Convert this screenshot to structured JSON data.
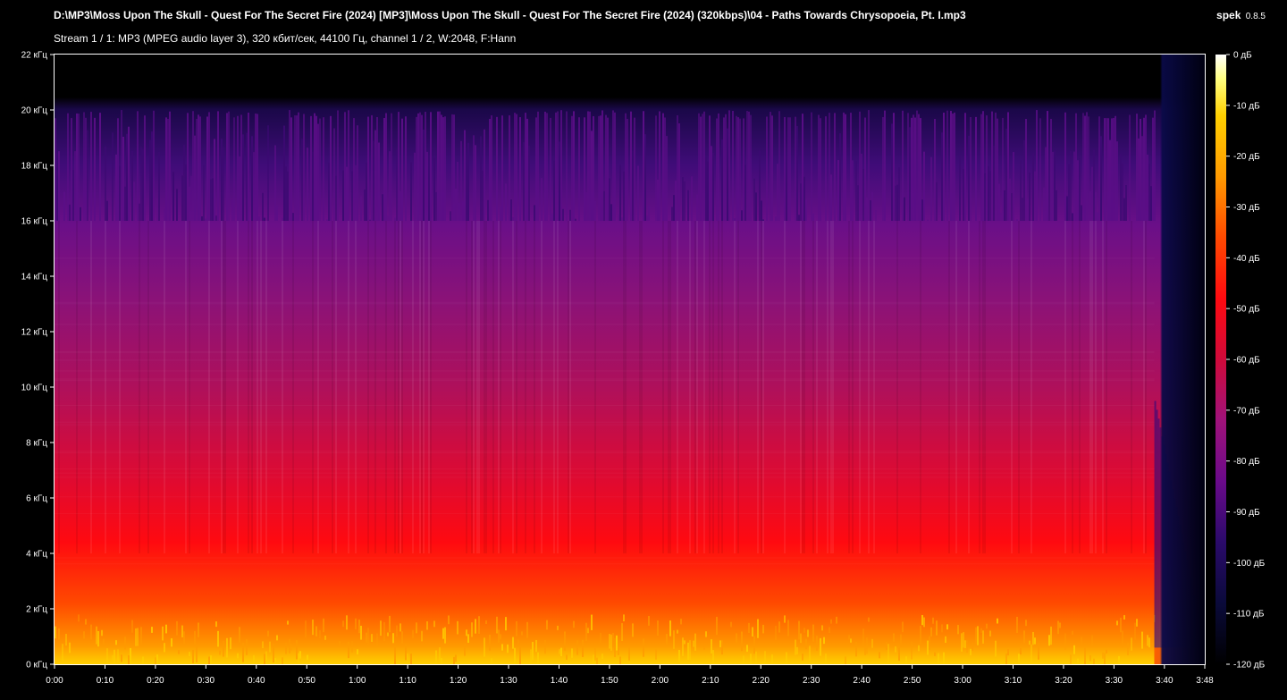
{
  "header": {
    "file_path": "D:\\MP3\\Moss Upon The Skull - Quest For The Secret Fire (2024) [MP3]\\Moss Upon The Skull - Quest For The Secret Fire (2024) (320kbps)\\04 - Paths Towards Chrysopoeia, Pt. I.mp3",
    "stream_info": "Stream 1 / 1: MP3 (MPEG audio layer 3), 320 кбит/сек, 44100 Гц, channel 1 / 2, W:2048, F:Hann",
    "app_name": "spek",
    "app_version": "0.8.5"
  },
  "chart_data": {
    "type": "heatmap",
    "title": "",
    "xlabel": "",
    "ylabel": "",
    "x_unit": "time (m:ss)",
    "x_range_seconds": [
      0,
      228
    ],
    "x_ticks": [
      "0:00",
      "0:10",
      "0:20",
      "0:30",
      "0:40",
      "0:50",
      "1:00",
      "1:10",
      "1:20",
      "1:30",
      "1:40",
      "1:50",
      "2:00",
      "2:10",
      "2:20",
      "2:30",
      "2:40",
      "2:50",
      "3:00",
      "3:10",
      "3:20",
      "3:30",
      "3:40",
      "3:48"
    ],
    "y_range_khz": [
      0,
      22
    ],
    "y_ticks": [
      "0 кГц",
      "2 кГц",
      "4 кГц",
      "6 кГц",
      "8 кГц",
      "10 кГц",
      "12 кГц",
      "14 кГц",
      "16 кГц",
      "18 кГц",
      "20 кГц",
      "22 кГц"
    ],
    "colorbar_range_db": [
      -120,
      0
    ],
    "colorbar_ticks": [
      "0 дБ",
      "-10 дБ",
      "-20 дБ",
      "-30 дБ",
      "-40 дБ",
      "-50 дБ",
      "-60 дБ",
      "-70 дБ",
      "-80 дБ",
      "-90 дБ",
      "-100 дБ",
      "-110 дБ",
      "-120 дБ"
    ],
    "palette": [
      "#000000",
      "#0a0a3a",
      "#2a0a6a",
      "#6a0a8a",
      "#a0127a",
      "#d00a3a",
      "#ff0a10",
      "#ff4a00",
      "#ff9a00",
      "#ffd000",
      "#ffff80",
      "#ffffff"
    ],
    "lowpass_cutoff_khz": 20,
    "frequent_cutoff_khz": 16,
    "notes_visible": "energy concentrated below ~5 kHz (red/orange), content extends to 20 kHz, track fades out after ~3:40"
  }
}
